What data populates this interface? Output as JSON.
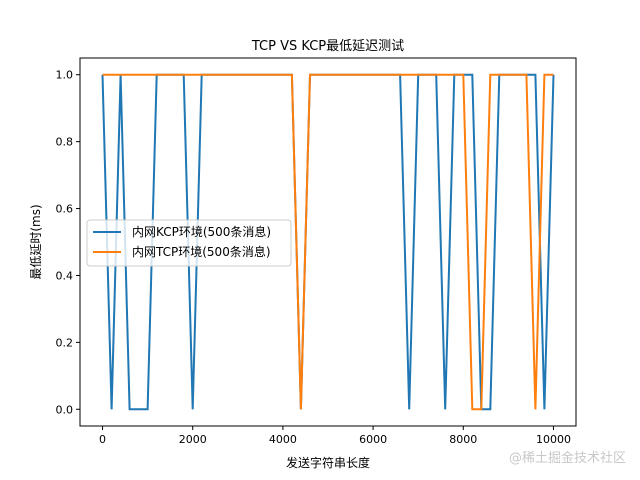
{
  "chart_data": {
    "type": "line",
    "title": "TCP VS KCP最低延迟测试",
    "xlabel": "发送字符串长度",
    "ylabel": "最低延时(ms)",
    "xlim": [
      -500,
      10500
    ],
    "ylim": [
      -0.05,
      1.05
    ],
    "xticks": [
      0,
      2000,
      4000,
      6000,
      8000,
      10000
    ],
    "xtick_labels": [
      "0",
      "2000",
      "4000",
      "6000",
      "8000",
      "10000"
    ],
    "yticks": [
      0.0,
      0.2,
      0.4,
      0.6,
      0.8,
      1.0
    ],
    "ytick_labels": [
      "0.0",
      "0.2",
      "0.4",
      "0.6",
      "0.8",
      "1.0"
    ],
    "grid": false,
    "legend_position": "center left",
    "x": [
      0,
      200,
      400,
      600,
      800,
      1000,
      1200,
      1400,
      1600,
      1800,
      2000,
      2200,
      2400,
      2600,
      2800,
      3000,
      3200,
      3400,
      3600,
      3800,
      4000,
      4200,
      4400,
      4600,
      4800,
      5000,
      5200,
      5400,
      5600,
      5800,
      6000,
      6200,
      6400,
      6600,
      6800,
      7000,
      7200,
      7400,
      7600,
      7800,
      8000,
      8200,
      8400,
      8600,
      8800,
      9000,
      9200,
      9400,
      9600,
      9800,
      10000
    ],
    "series": [
      {
        "name": "内网KCP环境(500条消息)",
        "color": "#1f77b4",
        "values": [
          1,
          0,
          1,
          0,
          0,
          0,
          1,
          1,
          1,
          1,
          0,
          1,
          1,
          1,
          1,
          1,
          1,
          1,
          1,
          1,
          1,
          1,
          0,
          1,
          1,
          1,
          1,
          1,
          1,
          1,
          1,
          1,
          1,
          1,
          0,
          1,
          1,
          1,
          0,
          1,
          1,
          1,
          0,
          0,
          1,
          1,
          1,
          1,
          1,
          0,
          1
        ]
      },
      {
        "name": "内网TCP环境(500条消息)",
        "color": "#ff7f0e",
        "values": [
          1,
          1,
          1,
          1,
          1,
          1,
          1,
          1,
          1,
          1,
          1,
          1,
          1,
          1,
          1,
          1,
          1,
          1,
          1,
          1,
          1,
          1,
          0,
          1,
          1,
          1,
          1,
          1,
          1,
          1,
          1,
          1,
          1,
          1,
          1,
          1,
          1,
          1,
          1,
          1,
          1,
          0,
          0,
          1,
          1,
          1,
          1,
          1,
          0,
          1,
          1
        ]
      }
    ]
  },
  "watermark": "@稀土掘金技术社区"
}
